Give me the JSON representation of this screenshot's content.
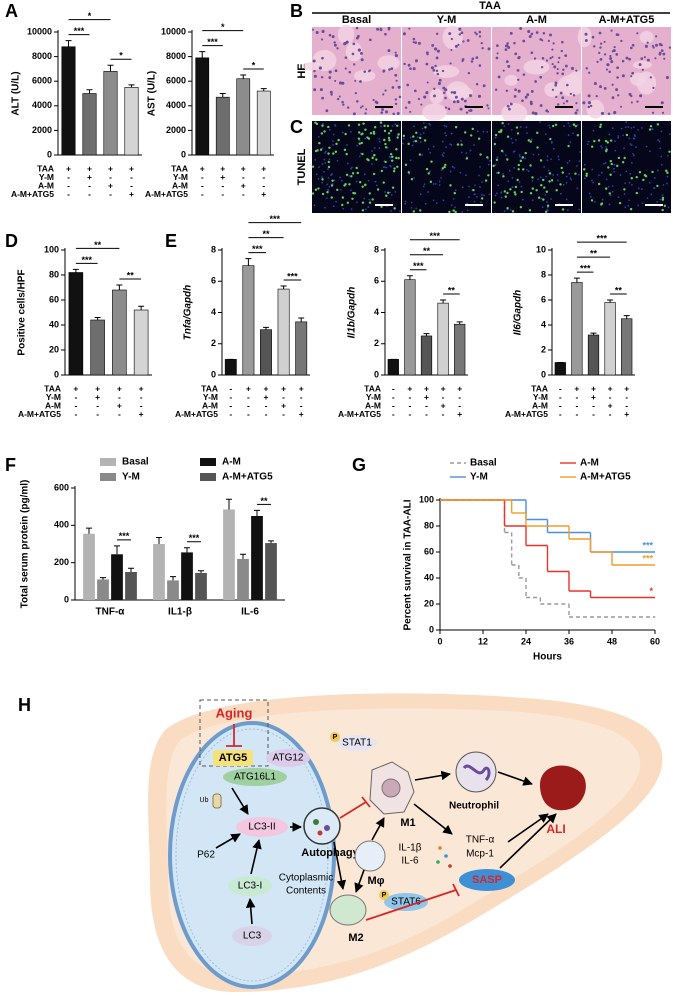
{
  "panels": [
    "A",
    "B",
    "C",
    "D",
    "E",
    "F",
    "G",
    "H"
  ],
  "chart_data": [
    {
      "type": "bar",
      "ylabel": "ALT (U/L)",
      "values": [
        8800,
        5000,
        6800,
        5500
      ],
      "errors": [
        500,
        300,
        500,
        200
      ],
      "colors": [
        "#111111",
        "#6e6e6e",
        "#8c8c8c",
        "#d4d4d4"
      ],
      "ylim": [
        0,
        10000
      ],
      "yticks": [
        0,
        2000,
        4000,
        6000,
        8000,
        10000
      ],
      "conditions": [
        {
          "name": "TAA",
          "marks": [
            "+",
            "+",
            "+",
            "+"
          ]
        },
        {
          "name": "Y-M",
          "marks": [
            "-",
            "+",
            "-",
            "-"
          ]
        },
        {
          "name": "A-M",
          "marks": [
            "-",
            "-",
            "+",
            "-"
          ]
        },
        {
          "name": "A-M+ATG5",
          "marks": [
            "-",
            "-",
            "-",
            "+"
          ]
        }
      ],
      "significance": [
        {
          "between": [
            0,
            1
          ],
          "label": "***"
        },
        {
          "between": [
            2,
            3
          ],
          "label": "*"
        },
        {
          "between": [
            0,
            2
          ],
          "label": "*"
        }
      ]
    },
    {
      "type": "bar",
      "ylabel": "AST (U/L)",
      "values": [
        7900,
        4700,
        6200,
        5200
      ],
      "errors": [
        500,
        300,
        300,
        200
      ],
      "colors": [
        "#111111",
        "#6e6e6e",
        "#8c8c8c",
        "#d4d4d4"
      ],
      "ylim": [
        0,
        10000
      ],
      "yticks": [
        0,
        2000,
        4000,
        6000,
        8000,
        10000
      ],
      "conditions": [
        {
          "name": "TAA",
          "marks": [
            "+",
            "+",
            "+",
            "+"
          ]
        },
        {
          "name": "Y-M",
          "marks": [
            "-",
            "+",
            "-",
            "-"
          ]
        },
        {
          "name": "A-M",
          "marks": [
            "-",
            "-",
            "+",
            "-"
          ]
        },
        {
          "name": "A-M+ATG5",
          "marks": [
            "-",
            "-",
            "-",
            "+"
          ]
        }
      ],
      "significance": [
        {
          "between": [
            0,
            1
          ],
          "label": "***"
        },
        {
          "between": [
            2,
            3
          ],
          "label": "*"
        },
        {
          "between": [
            0,
            2
          ],
          "label": "*"
        }
      ]
    },
    {
      "type": "bar",
      "ylabel": "Positive cells/HPF",
      "values": [
        82,
        44,
        68,
        52
      ],
      "errors": [
        2.5,
        2,
        4,
        3
      ],
      "colors": [
        "#111111",
        "#6e6e6e",
        "#8c8c8c",
        "#d4d4d4"
      ],
      "ylim": [
        0,
        100
      ],
      "yticks": [
        0,
        20,
        40,
        60,
        80,
        100
      ],
      "conditions": [
        {
          "name": "TAA",
          "marks": [
            "+",
            "+",
            "+",
            "+"
          ]
        },
        {
          "name": "Y-M",
          "marks": [
            "-",
            "+",
            "-",
            "-"
          ]
        },
        {
          "name": "A-M",
          "marks": [
            "-",
            "-",
            "+",
            "-"
          ]
        },
        {
          "name": "A-M+ATG5",
          "marks": [
            "-",
            "-",
            "-",
            "+"
          ]
        }
      ],
      "significance": [
        {
          "between": [
            0,
            1
          ],
          "label": "***"
        },
        {
          "between": [
            2,
            3
          ],
          "label": "**"
        },
        {
          "between": [
            0,
            2
          ],
          "label": "**"
        }
      ]
    },
    {
      "type": "bar",
      "ylabel": "Tnfa/Gapdh",
      "italic": true,
      "values": [
        1,
        7,
        2.9,
        5.5,
        3.4
      ],
      "errors": [
        0,
        0.45,
        0.15,
        0.2,
        0.25
      ],
      "colors": [
        "#111111",
        "#9a9a9a",
        "#555555",
        "#d0d0d0",
        "#777777"
      ],
      "ylim": [
        0,
        8
      ],
      "yticks": [
        0,
        2,
        4,
        6,
        8
      ],
      "conditions": [
        {
          "name": "TAA",
          "marks": [
            "-",
            "+",
            "+",
            "+",
            "+"
          ]
        },
        {
          "name": "Y-M",
          "marks": [
            "-",
            "-",
            "+",
            "-",
            "-"
          ]
        },
        {
          "name": "A-M",
          "marks": [
            "-",
            "-",
            "-",
            "+",
            "-"
          ]
        },
        {
          "name": "A-M+ATG5",
          "marks": [
            "-",
            "-",
            "-",
            "-",
            "+"
          ]
        }
      ],
      "significance": [
        {
          "between": [
            1,
            2
          ],
          "label": "***"
        },
        {
          "between": [
            3,
            4
          ],
          "label": "***"
        },
        {
          "between": [
            1,
            3
          ],
          "label": "**"
        },
        {
          "between": [
            1,
            4
          ],
          "label": "***"
        }
      ]
    },
    {
      "type": "bar",
      "ylabel": "Il1b/Gapdh",
      "italic": true,
      "values": [
        1,
        6.1,
        2.5,
        4.6,
        3.25
      ],
      "errors": [
        0,
        0.25,
        0.15,
        0.2,
        0.15
      ],
      "colors": [
        "#111111",
        "#9a9a9a",
        "#555555",
        "#d0d0d0",
        "#777777"
      ],
      "ylim": [
        0,
        8
      ],
      "yticks": [
        0,
        2,
        4,
        6,
        8
      ],
      "conditions": [
        {
          "name": "TAA",
          "marks": [
            "-",
            "+",
            "+",
            "+",
            "+"
          ]
        },
        {
          "name": "Y-M",
          "marks": [
            "-",
            "-",
            "+",
            "-",
            "-"
          ]
        },
        {
          "name": "A-M",
          "marks": [
            "-",
            "-",
            "-",
            "+",
            "-"
          ]
        },
        {
          "name": "A-M+ATG5",
          "marks": [
            "-",
            "-",
            "-",
            "-",
            "+"
          ]
        }
      ],
      "significance": [
        {
          "between": [
            1,
            2
          ],
          "label": "***"
        },
        {
          "between": [
            3,
            4
          ],
          "label": "**"
        },
        {
          "between": [
            1,
            3
          ],
          "label": "**"
        },
        {
          "between": [
            1,
            4
          ],
          "label": "***"
        }
      ]
    },
    {
      "type": "bar",
      "ylabel": "Il6/Gapdh",
      "italic": true,
      "values": [
        1,
        7.4,
        3.2,
        5.8,
        4.5
      ],
      "errors": [
        0,
        0.35,
        0.15,
        0.2,
        0.25
      ],
      "colors": [
        "#111111",
        "#9a9a9a",
        "#555555",
        "#d0d0d0",
        "#777777"
      ],
      "ylim": [
        0,
        10
      ],
      "yticks": [
        0,
        2,
        4,
        6,
        8,
        10
      ],
      "conditions": [
        {
          "name": "TAA",
          "marks": [
            "-",
            "+",
            "+",
            "+",
            "+"
          ]
        },
        {
          "name": "Y-M",
          "marks": [
            "-",
            "-",
            "+",
            "-",
            "-"
          ]
        },
        {
          "name": "A-M",
          "marks": [
            "-",
            "-",
            "-",
            "+",
            "-"
          ]
        },
        {
          "name": "A-M+ATG5",
          "marks": [
            "-",
            "-",
            "-",
            "-",
            "+"
          ]
        }
      ],
      "significance": [
        {
          "between": [
            1,
            2
          ],
          "label": "***"
        },
        {
          "between": [
            3,
            4
          ],
          "label": "**"
        },
        {
          "between": [
            1,
            3
          ],
          "label": "**"
        },
        {
          "between": [
            1,
            4
          ],
          "label": "***"
        }
      ]
    },
    {
      "type": "grouped_bar",
      "ylabel": "Total serum protein (pg/ml)",
      "categories": [
        "TNF-α",
        "IL1-β",
        "IL-6"
      ],
      "series": [
        {
          "name": "Basal",
          "color": "#b3b3b3",
          "values": [
            355,
            300,
            485
          ],
          "errors": [
            30,
            35,
            55
          ]
        },
        {
          "name": "Y-M",
          "color": "#8a8a8a",
          "values": [
            110,
            105,
            220
          ],
          "errors": [
            10,
            20,
            25
          ]
        },
        {
          "name": "A-M",
          "color": "#111111",
          "values": [
            245,
            255,
            450
          ],
          "errors": [
            45,
            25,
            30
          ]
        },
        {
          "name": "A-M+ATG5",
          "color": "#555555",
          "values": [
            150,
            145,
            305
          ],
          "errors": [
            20,
            12,
            12
          ]
        }
      ],
      "ylim": [
        0,
        600
      ],
      "yticks": [
        0,
        200,
        400,
        600
      ],
      "significance": [
        {
          "category": 0,
          "between": [
            2,
            3
          ],
          "label": "***"
        },
        {
          "category": 1,
          "between": [
            2,
            3
          ],
          "label": "***"
        },
        {
          "category": 2,
          "between": [
            2,
            3
          ],
          "label": "**"
        }
      ]
    },
    {
      "type": "survival",
      "ylabel": "Percent survival in TAA-ALI",
      "xlabel": "Hours",
      "xlim": [
        0,
        60
      ],
      "xticks": [
        0,
        12,
        24,
        36,
        48,
        60
      ],
      "ylim": [
        0,
        100
      ],
      "yticks": [
        0,
        20,
        40,
        60,
        80,
        100
      ],
      "series": [
        {
          "name": "Basal",
          "color": "#999999",
          "dashed": true,
          "x": [
            0,
            18,
            20,
            22,
            24,
            28,
            36,
            60
          ],
          "values": [
            100,
            75,
            50,
            40,
            25,
            20,
            10,
            10
          ]
        },
        {
          "name": "Y-M",
          "color": "#4a90e2",
          "x": [
            0,
            24,
            30,
            42,
            60
          ],
          "values": [
            100,
            85,
            75,
            60,
            60
          ],
          "annotation": "***"
        },
        {
          "name": "A-M",
          "color": "#e8322b",
          "x": [
            0,
            18,
            24,
            30,
            36,
            42,
            60
          ],
          "values": [
            100,
            80,
            65,
            45,
            30,
            25,
            25
          ],
          "annotation": "*"
        },
        {
          "name": "A-M+ATG5",
          "color": "#f39c27",
          "x": [
            0,
            20,
            24,
            36,
            42,
            48,
            60
          ],
          "values": [
            100,
            90,
            80,
            70,
            60,
            50,
            50
          ],
          "annotation": "***"
        }
      ]
    }
  ],
  "micrographs": {
    "group_label": "TAA",
    "columns": [
      "Basal",
      "Y-M",
      "A-M",
      "A-M+ATG5"
    ],
    "rows": [
      "HE",
      "TUNEL"
    ]
  },
  "diagram": {
    "aging": "Aging",
    "atg5": "ATG5",
    "atg12": "ATG12",
    "atg16l1": "ATG16L1",
    "ub": "Ub",
    "lc3_ii": "LC3-II",
    "p62": "P62",
    "lc3_i": "LC3-I",
    "lc3": "LC3",
    "autophagy": "Autophagy",
    "cytoplasmic_contents": [
      "Cytoplasmic",
      "Contents"
    ],
    "stat1": "STAT1",
    "phospho": "P",
    "m1": "M1",
    "neutrophil": "Neutrophil",
    "ali": "ALI",
    "tnf": "TNF-α",
    "mcp1": "Mcp-1",
    "il1b": "IL-1β",
    "il6": "IL-6",
    "mphi": "Mφ",
    "stat6": "STAT6",
    "m2": "M2",
    "sasp": "SASP"
  }
}
